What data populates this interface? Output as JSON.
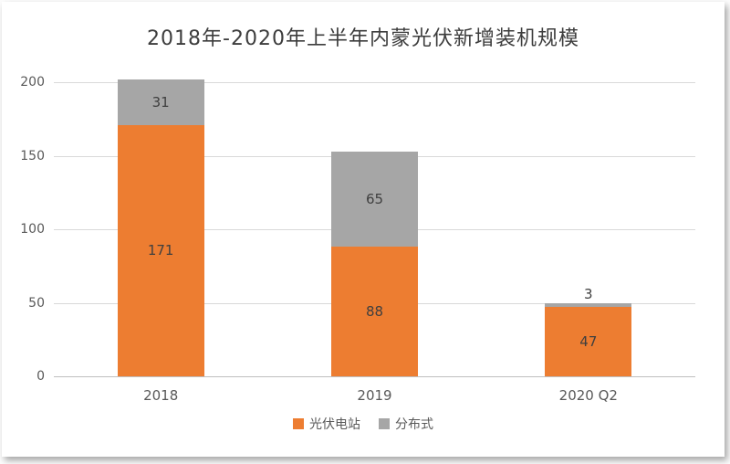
{
  "chart_data": {
    "type": "bar",
    "stacked": true,
    "title": "2018年-2020年上半年内蒙光伏新增装机规模",
    "categories": [
      "2018",
      "2019",
      "2020 Q2"
    ],
    "series": [
      {
        "name": "光伏电站",
        "color": "#ED7D31",
        "values": [
          171,
          88,
          47
        ]
      },
      {
        "name": "分布式",
        "color": "#A6A6A6",
        "values": [
          31,
          65,
          3
        ]
      }
    ],
    "xlabel": "",
    "ylabel": "",
    "ylim": [
      0,
      200
    ],
    "yticks": [
      0,
      50,
      100,
      150,
      200
    ],
    "grid": true,
    "legend_position": "bottom",
    "colors": {
      "title_text": "#3d3d3d",
      "axis_text": "#595959",
      "gridline": "#d9d9d9",
      "bar_value_text": "#3f3f3f"
    }
  }
}
